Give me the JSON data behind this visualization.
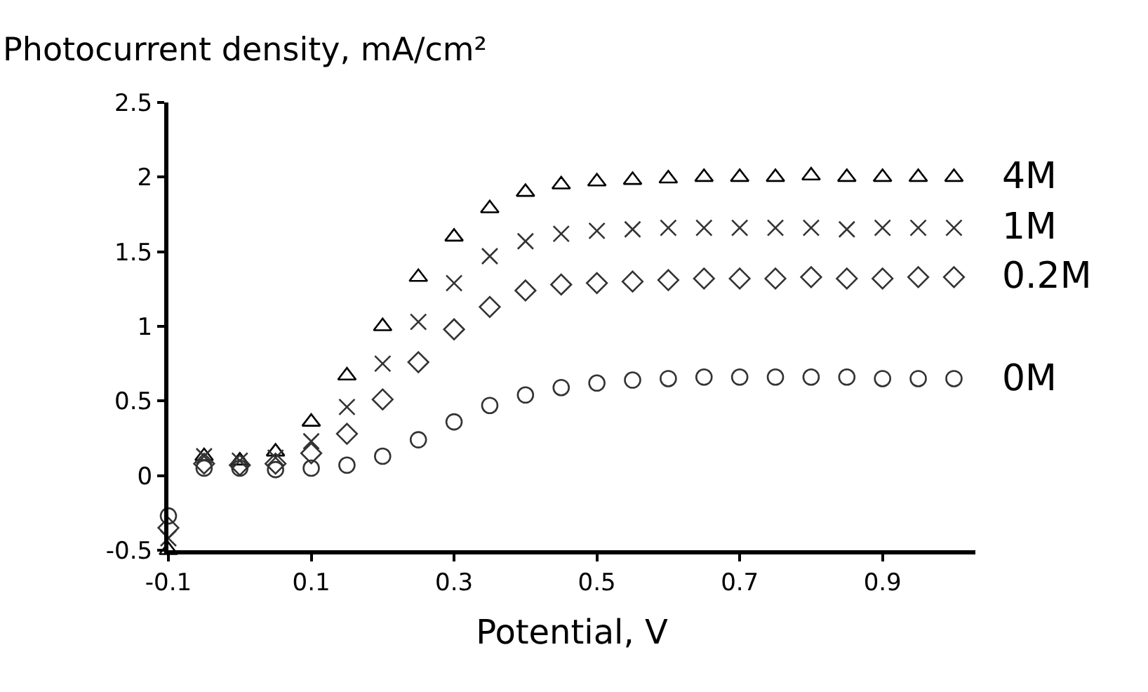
{
  "chart_data": {
    "type": "scatter",
    "ylabel": "Photocurrent density, mA/cm²",
    "xlabel": "Potential, V",
    "x": [
      -0.1,
      -0.05,
      0,
      0.05,
      0.1,
      0.15,
      0.2,
      0.25,
      0.3,
      0.35,
      0.4,
      0.45,
      0.5,
      0.55,
      0.6,
      0.65,
      0.7,
      0.75,
      0.8,
      0.85,
      0.9,
      0.95,
      1.0
    ],
    "series": [
      {
        "name": "4M",
        "color": "#000000",
        "marker": "triangle",
        "values": [
          -0.5,
          0.13,
          0.1,
          0.16,
          0.36,
          0.67,
          1.0,
          1.33,
          1.6,
          1.79,
          1.9,
          1.95,
          1.97,
          1.98,
          1.99,
          2.0,
          2.0,
          2.0,
          2.01,
          2.0,
          2.0,
          2.0,
          2.0
        ]
      },
      {
        "name": "1M",
        "color": "#333333",
        "marker": "cross",
        "values": [
          -0.42,
          0.13,
          0.1,
          0.12,
          0.23,
          0.46,
          0.75,
          1.03,
          1.29,
          1.47,
          1.57,
          1.62,
          1.64,
          1.65,
          1.66,
          1.66,
          1.66,
          1.66,
          1.66,
          1.65,
          1.66,
          1.66,
          1.66
        ]
      },
      {
        "name": "0.2M",
        "color": "#333333",
        "marker": "diamond",
        "values": [
          -0.35,
          0.08,
          0.07,
          0.08,
          0.15,
          0.28,
          0.51,
          0.76,
          0.98,
          1.13,
          1.24,
          1.28,
          1.29,
          1.3,
          1.31,
          1.32,
          1.32,
          1.32,
          1.33,
          1.32,
          1.32,
          1.33,
          1.33
        ]
      },
      {
        "name": "0M",
        "color": "#333333",
        "marker": "circle",
        "values": [
          -0.27,
          0.05,
          0.05,
          0.04,
          0.05,
          0.07,
          0.13,
          0.24,
          0.36,
          0.47,
          0.54,
          0.59,
          0.62,
          0.64,
          0.65,
          0.66,
          0.66,
          0.66,
          0.66,
          0.66,
          0.65,
          0.65,
          0.65
        ]
      }
    ],
    "xlim": [
      -0.1,
      1.03
    ],
    "xticks": [
      -0.1,
      0.1,
      0.3,
      0.5,
      0.7,
      0.9
    ],
    "ylim": [
      -0.5,
      2.5
    ],
    "yticks": [
      -0.5,
      0,
      0.5,
      1,
      1.5,
      2,
      2.5
    ],
    "legend": false
  }
}
